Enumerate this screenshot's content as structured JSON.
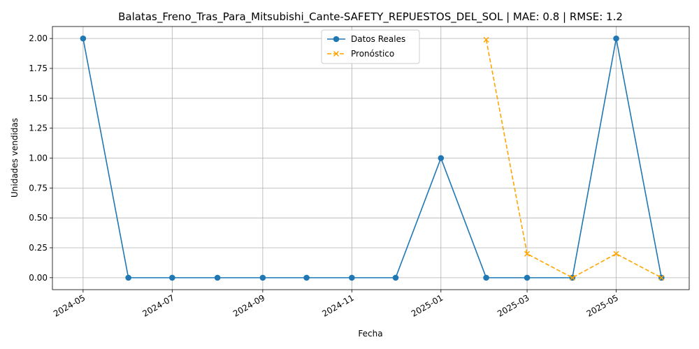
{
  "chart_data": {
    "type": "line",
    "title": "Balatas_Freno_Tras_Para_Mitsubishi_Cante-SAFETY_REPUESTOS_DEL_SOL | MAE: 0.8 | RMSE: 1.2",
    "xlabel": "Fecha",
    "ylabel": "Unidades vendidas",
    "x_type": "date",
    "xlim": [
      "2024-04-10",
      "2025-06-20"
    ],
    "ylim": [
      -0.1,
      2.1
    ],
    "x_ticks": [
      "2024-05-01",
      "2024-07-01",
      "2024-09-01",
      "2024-11-01",
      "2025-01-01",
      "2025-03-01",
      "2025-05-01"
    ],
    "x_tick_labels": [
      "2024-05",
      "2024-07",
      "2024-09",
      "2024-11",
      "2025-01",
      "2025-03",
      "2025-05"
    ],
    "y_ticks": [
      0.0,
      0.25,
      0.5,
      0.75,
      1.0,
      1.25,
      1.5,
      1.75,
      2.0
    ],
    "y_tick_labels": [
      "0.00",
      "0.25",
      "0.50",
      "0.75",
      "1.00",
      "1.25",
      "1.50",
      "1.75",
      "2.00"
    ],
    "grid": true,
    "legend_position": "top-center",
    "series": [
      {
        "name": "Datos Reales",
        "color": "#1f77b4",
        "marker": "circle",
        "line_style": "solid",
        "x": [
          "2024-05-01",
          "2024-06-01",
          "2024-07-01",
          "2024-08-01",
          "2024-09-01",
          "2024-10-01",
          "2024-11-01",
          "2024-12-01",
          "2025-01-01",
          "2025-02-01",
          "2025-03-01",
          "2025-04-01",
          "2025-05-01",
          "2025-06-01"
        ],
        "values": [
          2,
          0,
          0,
          0,
          0,
          0,
          0,
          0,
          1,
          0,
          0,
          0,
          2,
          0
        ]
      },
      {
        "name": "Pronóstico",
        "color": "#ffa500",
        "marker": "x",
        "line_style": "dashed",
        "x": [
          "2025-02-01",
          "2025-03-01",
          "2025-04-01",
          "2025-05-01",
          "2025-06-01"
        ],
        "values": [
          1.99,
          0.2,
          0.0,
          0.2,
          0.0
        ]
      }
    ]
  }
}
